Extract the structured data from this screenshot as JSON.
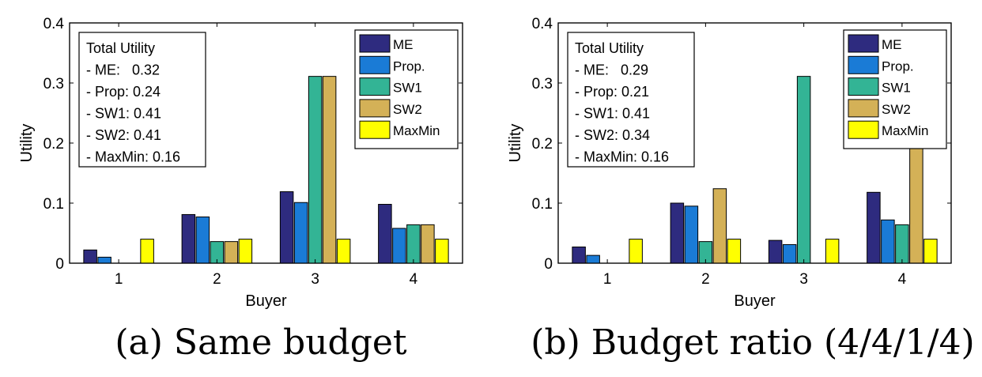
{
  "series_names": [
    "ME",
    "Prop.",
    "SW1",
    "SW2",
    "MaxMin"
  ],
  "series_colors": [
    "#2e2b7f",
    "#1a7bd6",
    "#33b495",
    "#d4b157",
    "#ffff00"
  ],
  "chart_data": [
    {
      "type": "bar",
      "caption": "(a) Same budget",
      "xlabel": "Buyer",
      "ylabel": "Utility",
      "categories": [
        "1",
        "2",
        "3",
        "4"
      ],
      "ylim": [
        0,
        0.4
      ],
      "yticks": [
        "0",
        "0.1",
        "0.2",
        "0.3",
        "0.4"
      ],
      "series": [
        {
          "name": "ME",
          "values": [
            0.022,
            0.081,
            0.119,
            0.098
          ]
        },
        {
          "name": "Prop.",
          "values": [
            0.01,
            0.077,
            0.101,
            0.058
          ]
        },
        {
          "name": "SW1",
          "values": [
            0.0,
            0.036,
            0.311,
            0.064
          ]
        },
        {
          "name": "SW2",
          "values": [
            0.0,
            0.036,
            0.311,
            0.064
          ]
        },
        {
          "name": "MaxMin",
          "values": [
            0.04,
            0.04,
            0.04,
            0.04
          ]
        }
      ],
      "legend_position": "top-right",
      "annotation": {
        "title": "Total Utility",
        "lines": [
          "- ME:   0.32",
          "- Prop: 0.24",
          "- SW1: 0.41",
          "- SW2: 0.41",
          "- MaxMin: 0.16"
        ]
      }
    },
    {
      "type": "bar",
      "caption": "(b) Budget ratio (4/4/1/4)",
      "xlabel": "Buyer",
      "ylabel": "Utility",
      "categories": [
        "1",
        "2",
        "3",
        "4"
      ],
      "ylim": [
        0,
        0.4
      ],
      "yticks": [
        "0",
        "0.1",
        "0.2",
        "0.3",
        "0.4"
      ],
      "series": [
        {
          "name": "ME",
          "values": [
            0.027,
            0.1,
            0.038,
            0.118
          ]
        },
        {
          "name": "Prop.",
          "values": [
            0.013,
            0.095,
            0.031,
            0.072
          ]
        },
        {
          "name": "SW1",
          "values": [
            0.0,
            0.036,
            0.311,
            0.064
          ]
        },
        {
          "name": "SW2",
          "values": [
            0.0,
            0.124,
            0.0,
            0.217
          ]
        },
        {
          "name": "MaxMin",
          "values": [
            0.04,
            0.04,
            0.04,
            0.04
          ]
        }
      ],
      "legend_position": "top-right",
      "annotation": {
        "title": "Total Utility",
        "lines": [
          "- ME:   0.29",
          "- Prop: 0.21",
          "- SW1: 0.41",
          "- SW2: 0.34",
          "- MaxMin: 0.16"
        ]
      }
    }
  ]
}
